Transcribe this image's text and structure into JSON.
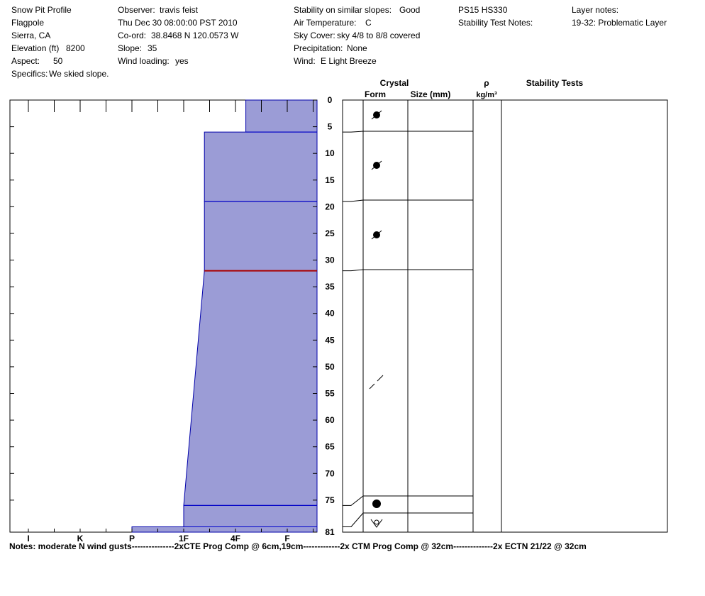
{
  "header": {
    "title": "Snow Pit Profile",
    "location": "Flagpole",
    "region": "Sierra, CA",
    "elevation_label": "Elevation (ft)",
    "elevation": "8200",
    "aspect_label": "Aspect:",
    "aspect": "50",
    "specifics_label": "Specifics:",
    "specifics": "We skied slope.",
    "observer_label": "Observer:",
    "observer": "travis feist",
    "datetime": "Thu Dec 30 08:00:00 PST 2010",
    "coord_label": "Co-ord:",
    "coord": "38.8468 N 120.0573 W",
    "slope_label": "Slope:",
    "slope": "35",
    "wind_loading_label": "Wind loading:",
    "wind_loading": "yes",
    "stability_label": "Stability on similar slopes:",
    "stability": "Good",
    "air_temp_label": "Air Temperature:",
    "air_temp": "C",
    "sky_label": "Sky Cover:",
    "sky": "sky 4/8 to 8/8 covered",
    "precip_label": "Precipitation:",
    "precip": "None",
    "wind_label": "Wind:",
    "wind": "E Light Breeze",
    "ps_hs": "PS15 HS330",
    "stability_test_notes_label": "Stability Test Notes:",
    "layer_notes_label": "Layer notes:",
    "layer_notes": "19-32: Problematic Layer"
  },
  "columns": {
    "crystal": "Crystal",
    "form": "Form",
    "size": "Size (mm)",
    "rho": "ρ",
    "density_unit": "kg/m³",
    "stability_tests": "Stability Tests"
  },
  "notes": "Notes:  moderate N wind gusts---------------2xCTE Prog Comp @ 6cm,19cm-------------2x CTM Prog Comp @ 32cm--------------2x ECTN 21/22 @ 32cm",
  "colors": {
    "fill": "#9b9cd6",
    "layer_line": "#0000cc",
    "problem_line": "#aa0000"
  },
  "chart_data": {
    "type": "area",
    "title": "",
    "xlabel": "",
    "ylabel": "",
    "x_ticks": [
      "I",
      "K",
      "P",
      "1F",
      "4F",
      "F"
    ],
    "y_ticks": [
      0,
      5,
      10,
      15,
      20,
      25,
      30,
      35,
      40,
      45,
      50,
      55,
      60,
      65,
      70,
      75,
      81
    ],
    "ylim": [
      0,
      81
    ],
    "grid": false,
    "hardness_scale": {
      "I": 0,
      "K": 1,
      "P": 2,
      "1F": 3,
      "4F": 4,
      "F": 5
    },
    "layers": [
      {
        "top": 0,
        "bottom": 6,
        "hardness_top": 4.2,
        "hardness_bottom": 4.2,
        "form": "rounding-faceted"
      },
      {
        "top": 6,
        "bottom": 19,
        "hardness_top": 3.4,
        "hardness_bottom": 3.4,
        "form": "rounding-faceted"
      },
      {
        "top": 19,
        "bottom": 32,
        "hardness_top": 3.4,
        "hardness_bottom": 3.4,
        "form": "rounding-faceted"
      },
      {
        "top": 32,
        "bottom": 76,
        "hardness_top": 3.4,
        "hardness_bottom": 3.0,
        "form": "decomposing"
      },
      {
        "top": 76,
        "bottom": 80,
        "hardness_top": 3.0,
        "hardness_bottom": 3.0,
        "form": "rounded"
      },
      {
        "top": 80,
        "bottom": 81,
        "hardness_top": 2.0,
        "hardness_bottom": 2.0,
        "form": "melt-freeze"
      }
    ],
    "layer_boundaries": [
      6,
      19,
      32,
      76,
      80
    ],
    "problem_layer": 32
  }
}
